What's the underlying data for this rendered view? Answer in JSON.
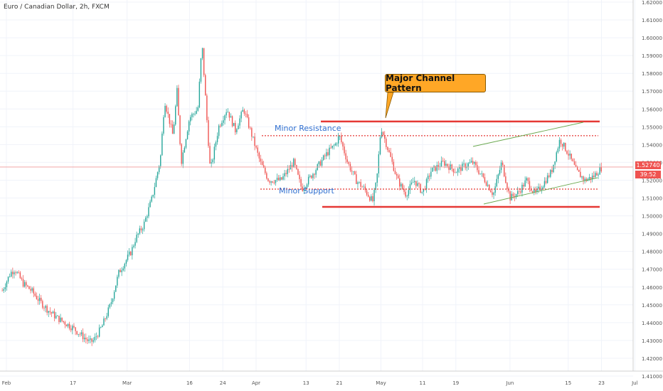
{
  "chart_data": {
    "type": "candlestick",
    "title": "Euro / Canadian Dollar, 2h, FXCM",
    "x_tick_labels": [
      "Feb",
      "17",
      "Mar",
      "16",
      "24",
      "Apr",
      "13",
      "21",
      "May",
      "11",
      "19",
      "Jun",
      "15",
      "23",
      "Jul"
    ],
    "y_tick_labels": [
      "1.62000",
      "1.61000",
      "1.60000",
      "1.59000",
      "1.58000",
      "1.57000",
      "1.56000",
      "1.55000",
      "1.54000",
      "1.53000",
      "1.52000",
      "1.51000",
      "1.50000",
      "1.49000",
      "1.48000",
      "1.47000",
      "1.46000",
      "1.45000",
      "1.44000",
      "1.43000",
      "1.42000",
      "1.41000"
    ],
    "ylim": [
      1.41,
      1.62
    ],
    "price_path": [
      {
        "x": "Jan 31",
        "y": 1.458
      },
      {
        "x": "Feb 2",
        "y": 1.468
      },
      {
        "x": "Feb 3",
        "y": 1.47
      },
      {
        "x": "Feb 5",
        "y": 1.462
      },
      {
        "x": "Feb 7",
        "y": 1.458
      },
      {
        "x": "Feb 9",
        "y": 1.452
      },
      {
        "x": "Feb 11",
        "y": 1.447
      },
      {
        "x": "Feb 13",
        "y": 1.443
      },
      {
        "x": "Feb 15",
        "y": 1.44
      },
      {
        "x": "Feb 17",
        "y": 1.437
      },
      {
        "x": "Feb 19",
        "y": 1.433
      },
      {
        "x": "Feb 21",
        "y": 1.429
      },
      {
        "x": "Feb 22",
        "y": 1.43
      },
      {
        "x": "Feb 24",
        "y": 1.438
      },
      {
        "x": "Feb 26",
        "y": 1.45
      },
      {
        "x": "Feb 28",
        "y": 1.468
      },
      {
        "x": "Mar 2",
        "y": 1.48
      },
      {
        "x": "Mar 3",
        "y": 1.487
      },
      {
        "x": "Mar 5",
        "y": 1.495
      },
      {
        "x": "Mar 7",
        "y": 1.51
      },
      {
        "x": "Mar 9",
        "y": 1.532
      },
      {
        "x": "Mar 10",
        "y": 1.565
      },
      {
        "x": "Mar 12",
        "y": 1.545
      },
      {
        "x": "Mar 13",
        "y": 1.57
      },
      {
        "x": "Mar 14",
        "y": 1.53
      },
      {
        "x": "Mar 16",
        "y": 1.555
      },
      {
        "x": "Mar 18",
        "y": 1.56
      },
      {
        "x": "Mar 19",
        "y": 1.597
      },
      {
        "x": "Mar 20",
        "y": 1.56
      },
      {
        "x": "Mar 21",
        "y": 1.525
      },
      {
        "x": "Mar 23",
        "y": 1.55
      },
      {
        "x": "Mar 25",
        "y": 1.56
      },
      {
        "x": "Mar 27",
        "y": 1.548
      },
      {
        "x": "Mar 29",
        "y": 1.56
      },
      {
        "x": "Mar 31",
        "y": 1.545
      },
      {
        "x": "Apr 2",
        "y": 1.53
      },
      {
        "x": "Apr 4",
        "y": 1.52
      },
      {
        "x": "Apr 7",
        "y": 1.52
      },
      {
        "x": "Apr 10",
        "y": 1.53
      },
      {
        "x": "Apr 12",
        "y": 1.515
      },
      {
        "x": "Apr 15",
        "y": 1.525
      },
      {
        "x": "Apr 18",
        "y": 1.535
      },
      {
        "x": "Apr 20",
        "y": 1.54
      },
      {
        "x": "Apr 21",
        "y": 1.545
      },
      {
        "x": "Apr 23",
        "y": 1.53
      },
      {
        "x": "Apr 25",
        "y": 1.52
      },
      {
        "x": "Apr 27",
        "y": 1.515
      },
      {
        "x": "Apr 29",
        "y": 1.508
      },
      {
        "x": "Apr 30",
        "y": 1.52
      },
      {
        "x": "May 1",
        "y": 1.55
      },
      {
        "x": "May 3",
        "y": 1.535
      },
      {
        "x": "May 5",
        "y": 1.52
      },
      {
        "x": "May 7",
        "y": 1.512
      },
      {
        "x": "May 9",
        "y": 1.52
      },
      {
        "x": "May 11",
        "y": 1.513
      },
      {
        "x": "May 13",
        "y": 1.525
      },
      {
        "x": "May 16",
        "y": 1.53
      },
      {
        "x": "May 19",
        "y": 1.525
      },
      {
        "x": "May 21",
        "y": 1.528
      },
      {
        "x": "May 23",
        "y": 1.53
      },
      {
        "x": "May 26",
        "y": 1.52
      },
      {
        "x": "May 28",
        "y": 1.512
      },
      {
        "x": "May 30",
        "y": 1.53
      },
      {
        "x": "Jun 1",
        "y": 1.51
      },
      {
        "x": "Jun 3",
        "y": 1.513
      },
      {
        "x": "Jun 5",
        "y": 1.52
      },
      {
        "x": "Jun 7",
        "y": 1.512
      },
      {
        "x": "Jun 9",
        "y": 1.518
      },
      {
        "x": "Jun 11",
        "y": 1.525
      },
      {
        "x": "Jun 13",
        "y": 1.543
      },
      {
        "x": "Jun 15",
        "y": 1.535
      },
      {
        "x": "Jun 17",
        "y": 1.525
      },
      {
        "x": "Jun 19",
        "y": 1.52
      },
      {
        "x": "Jun 21",
        "y": 1.522
      },
      {
        "x": "Jun 23",
        "y": 1.527
      }
    ],
    "current_price": "1.52740",
    "countdown": "39:52",
    "levels": [
      {
        "name": "major-resistance",
        "y": 1.553,
        "color": "#e53935",
        "style": "solid"
      },
      {
        "name": "major-support",
        "y": 1.505,
        "color": "#e53935",
        "style": "solid"
      },
      {
        "name": "minor-resistance",
        "y": 1.545,
        "color": "#e53935",
        "style": "dotted"
      },
      {
        "name": "minor-support",
        "y": 1.515,
        "color": "#e53935",
        "style": "dotted"
      }
    ],
    "annotations": {
      "callout": "Major Channel Pattern",
      "minor_resistance": "Minor Resistance",
      "minor_support": "Minor Support"
    },
    "colors": {
      "up": "#26a69a",
      "down": "#ef5350",
      "level": "#e53935",
      "trend": "#6aa84f",
      "text": "#2f6fd0",
      "callout": "#ffa726"
    }
  }
}
